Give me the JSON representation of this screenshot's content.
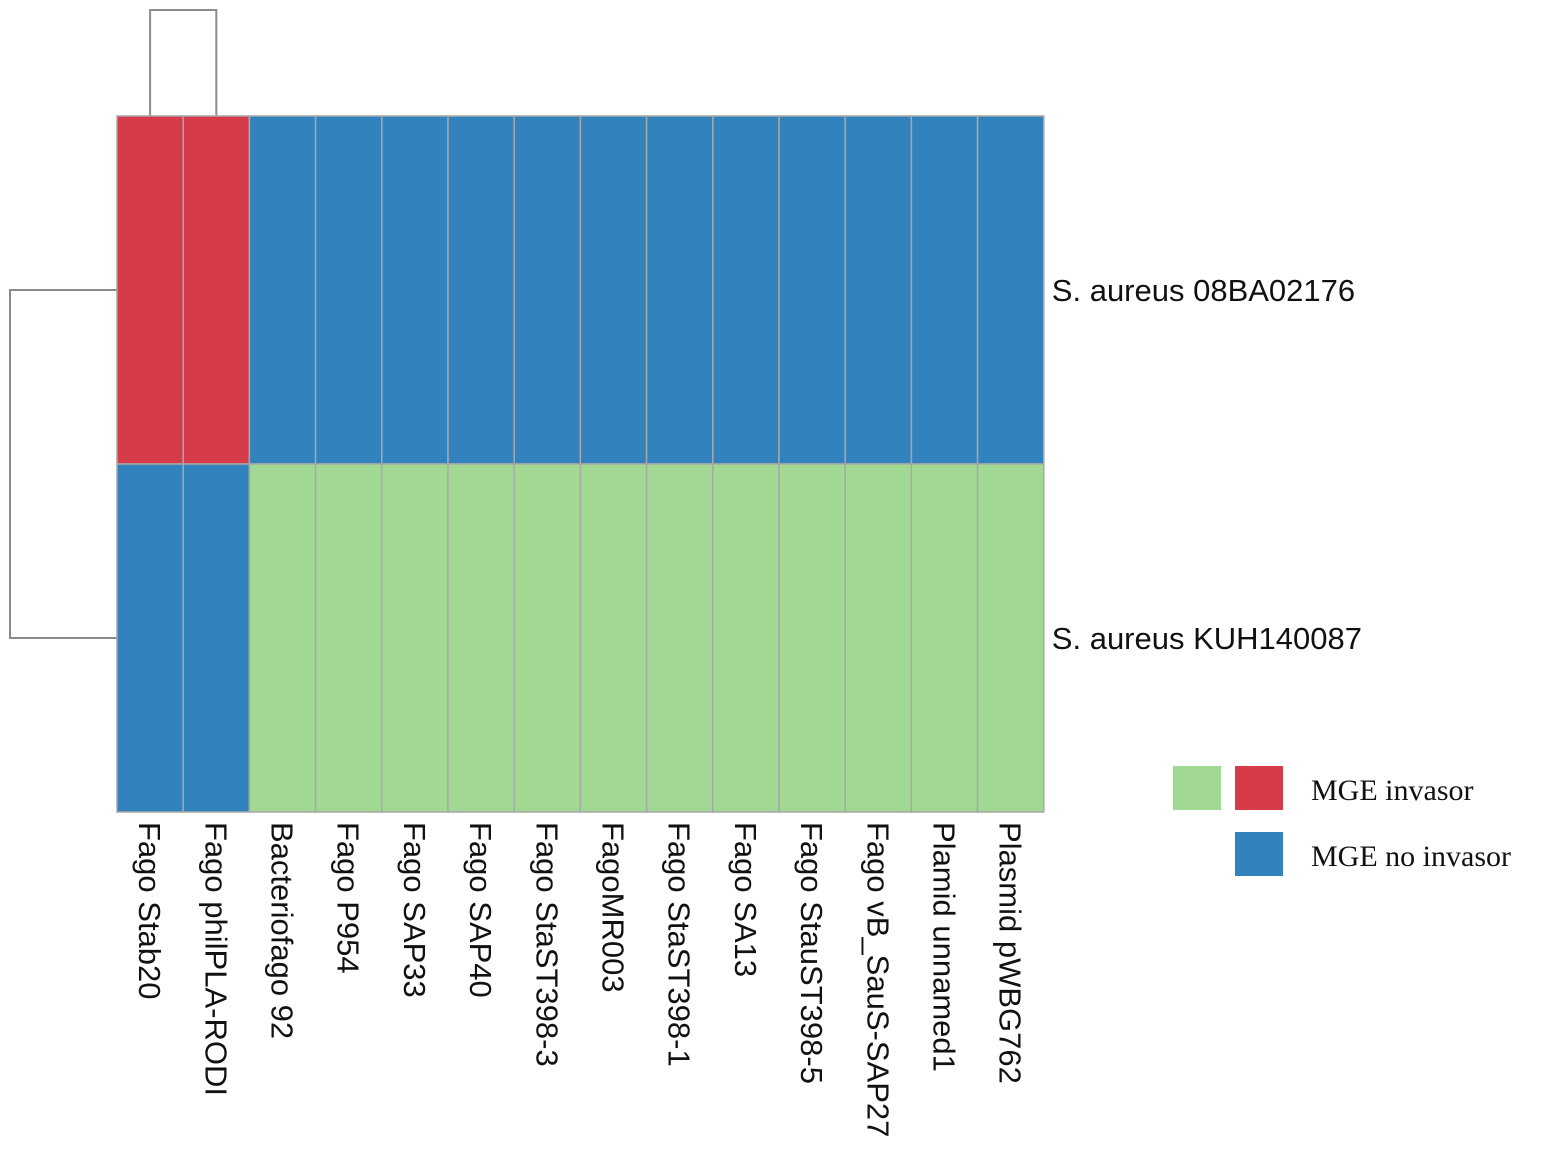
{
  "chart_data": {
    "type": "heatmap",
    "columns": [
      "Fago Stab20",
      "Fago philPLA-RODI",
      "Bacteriofago 92",
      "Fago P954",
      "Fago SAP33",
      "Fago SAP40",
      "Fago StaST398-3",
      "FagoMR003",
      "Fago StaST398-1",
      "Fago SA13",
      "Fago StauST398-5",
      "Fago vB_SauS-SAP27",
      "Plamid unnamed1",
      "Plasmid pWBG762"
    ],
    "rows": [
      "S. aureus 08BA02176",
      "S. aureus KUH140087"
    ],
    "cells": [
      [
        "red",
        "red",
        "blue",
        "blue",
        "blue",
        "blue",
        "blue",
        "blue",
        "blue",
        "blue",
        "blue",
        "blue",
        "blue",
        "blue"
      ],
      [
        "blue",
        "blue",
        "green",
        "green",
        "green",
        "green",
        "green",
        "green",
        "green",
        "green",
        "green",
        "green",
        "green",
        "green"
      ]
    ],
    "colors": {
      "red": "#d63b4a",
      "blue": "#3182bd",
      "green": "#a1d993",
      "gridline": "#a8a8a8",
      "dendrogram": "#8c8c8c"
    },
    "dendrogram": {
      "columns_joined": [
        "Fago Stab20",
        "Fago philPLA-RODI"
      ],
      "rows_joined": [
        "S. aureus 08BA02176",
        "S. aureus KUH140087"
      ]
    },
    "legend": {
      "position": "bottom-right",
      "entries": [
        {
          "label": "MGE invasor",
          "swatches": [
            "green",
            "red"
          ]
        },
        {
          "label": "MGE no  invasor",
          "swatches": [
            "blue"
          ]
        }
      ]
    }
  }
}
